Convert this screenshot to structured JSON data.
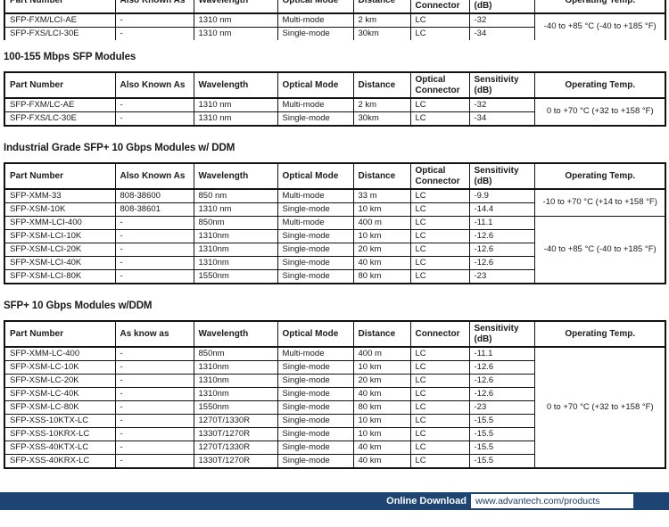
{
  "footer": {
    "label": "Online Download",
    "url": "www.advantech.com/products"
  },
  "colors": {
    "bar_blue": "#1d4472",
    "table_border": "#111111",
    "text": "#1a1a1a"
  },
  "sections": [
    {
      "title": "",
      "headers": [
        "Part Number",
        "Also Known As",
        "Wavelength",
        "Optical Mode",
        "Distance",
        "Optical\nConnector",
        "Sensitivity\n(dB)",
        "Operating Temp."
      ],
      "rows": [
        [
          "SFP-FXM/LCI-AE",
          "-",
          "1310 nm",
          "Multi-mode",
          "2 km",
          "LC",
          "-32"
        ],
        [
          "SFP-FXS/LCI-30E",
          "-",
          "1310 nm",
          "Single-mode",
          "30km",
          "LC",
          "-34"
        ]
      ],
      "temp_groups": [
        {
          "rows": 2,
          "label": "-40 to +85 °C (-40 to +185 °F)"
        }
      ]
    },
    {
      "title": "100-155 Mbps SFP Modules",
      "headers": [
        "Part Number",
        "Also Known As",
        "Wavelength",
        "Optical Mode",
        "Distance",
        "Optical\nConnector",
        "Sensitivity\n(dB)",
        "Operating Temp."
      ],
      "rows": [
        [
          "SFP-FXM/LC-AE",
          "-",
          "1310 nm",
          "Multi-mode",
          "2 km",
          "LC",
          "-32"
        ],
        [
          "SFP-FXS/LC-30E",
          "-",
          "1310 nm",
          "Single-mode",
          "30km",
          "LC",
          "-34"
        ]
      ],
      "temp_groups": [
        {
          "rows": 2,
          "label": "0 to +70 °C (+32 to +158 °F)"
        }
      ]
    },
    {
      "title": "Industrial Grade SFP+ 10 Gbps Modules w/ DDM",
      "headers": [
        "Part Number",
        "Also Known As",
        "Wavelength",
        "Optical Mode",
        "Distance",
        "Optical\nConnector",
        "Sensitivity\n(dB)",
        "Operating Temp."
      ],
      "rows": [
        [
          "SFP-XMM-33",
          "808-38600",
          "850 nm",
          "Multi-mode",
          "33 m",
          "LC",
          "-9.9"
        ],
        [
          "SFP-XSM-10K",
          "808-38601",
          "1310 nm",
          "Single-mode",
          "10 km",
          "LC",
          "-14.4"
        ],
        [
          "SFP-XMM-LCI-400",
          "-",
          "850nm",
          "Multi-mode",
          "400 m",
          "LC",
          "-11.1"
        ],
        [
          "SFP-XSM-LCI-10K",
          "-",
          "1310nm",
          "Single-mode",
          "10 km",
          "LC",
          "-12.6"
        ],
        [
          "SFP-XSM-LCI-20K",
          "-",
          "1310nm",
          "Single-mode",
          "20 km",
          "LC",
          "-12.6"
        ],
        [
          "SFP-XSM-LCI-40K",
          "-",
          "1310nm",
          "Single-mode",
          "40 km",
          "LC",
          "-12.6"
        ],
        [
          "SFP-XSM-LCI-80K",
          "-",
          "1550nm",
          "Single-mode",
          "80 km",
          "LC",
          "-23"
        ]
      ],
      "temp_groups": [
        {
          "rows": 2,
          "label": "-10 to +70 °C (+14 to +158 °F)"
        },
        {
          "rows": 5,
          "label": "-40 to +85 °C (-40 to +185 °F)"
        }
      ]
    },
    {
      "title": "SFP+ 10 Gbps Modules w/DDM",
      "headers": [
        "Part Number",
        "As know as",
        "Wavelength",
        "Optical Mode",
        "Distance",
        "Connector",
        "Sensitivity\n(dB)",
        "Operating Temp."
      ],
      "rows": [
        [
          "SFP-XMM-LC-400",
          "-",
          "850nm",
          "Multi-mode",
          "400 m",
          "LC",
          "-11.1"
        ],
        [
          "SFP-XSM-LC-10K",
          "-",
          "1310nm",
          "Single-mode",
          "10 km",
          "LC",
          "-12.6"
        ],
        [
          "SFP-XSM-LC-20K",
          "-",
          "1310nm",
          "Single-mode",
          "20 km",
          "LC",
          "-12.6"
        ],
        [
          "SFP-XSM-LC-40K",
          "-",
          "1310nm",
          "Single-mode",
          "40 km",
          "LC",
          "-12.6"
        ],
        [
          "SFP-XSM-LC-80K",
          "-",
          "1550nm",
          "Single-mode",
          "80 km",
          "LC",
          "-23"
        ],
        [
          "SFP-XSS-10KTX-LC",
          "-",
          "1270T/1330R",
          "Single-mode",
          "10 km",
          "LC",
          "-15.5"
        ],
        [
          "SFP-XSS-10KRX-LC",
          "-",
          "1330T/1270R",
          "Single-mode",
          "10 km",
          "LC",
          "-15.5"
        ],
        [
          "SFP-XSS-40KTX-LC",
          "-",
          "1270T/1330R",
          "Single-mode",
          "40 km",
          "LC",
          "-15.5"
        ],
        [
          "SFP-XSS-40KRX-LC",
          "-",
          "1330T/1270R",
          "Single-mode",
          "40 km",
          "LC",
          "-15.5"
        ]
      ],
      "temp_groups": [
        {
          "rows": 9,
          "label": "0 to +70 °C (+32 to +158 °F)"
        }
      ]
    }
  ]
}
